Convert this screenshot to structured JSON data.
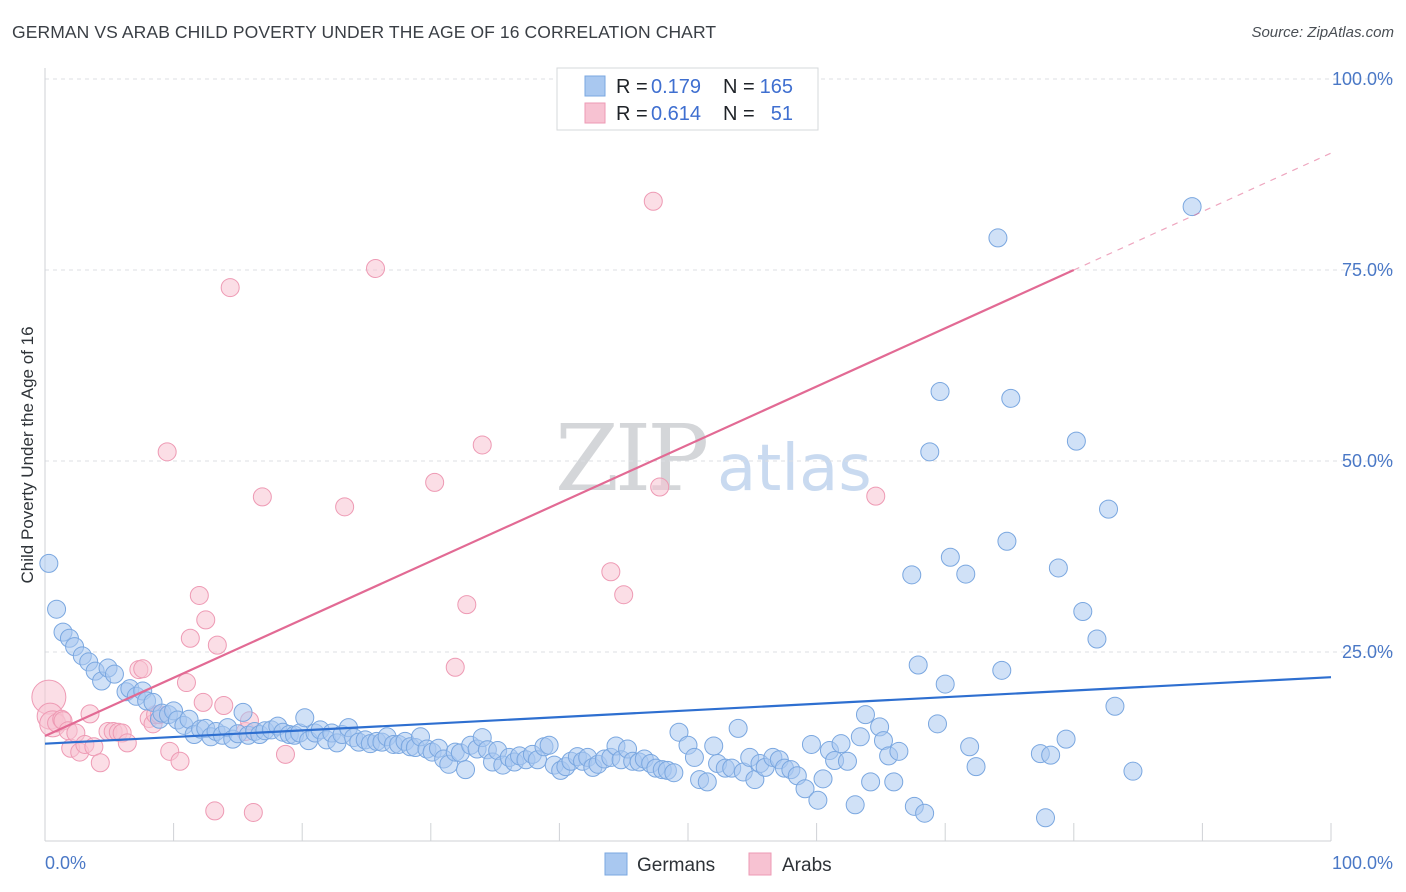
{
  "header": {
    "title": "GERMAN VS ARAB CHILD POVERTY UNDER THE AGE OF 16 CORRELATION CHART",
    "source": "Source: ZipAtlas.com"
  },
  "watermark": {
    "part1": "ZIP",
    "part2": "atlas"
  },
  "legend": {
    "rows": [
      {
        "r_label": "R =",
        "r_value": "0.179",
        "n_label": "N =",
        "n_value": "165"
      },
      {
        "r_label": "R =",
        "r_value": "0.614",
        "n_label": "N =",
        "n_value": "51"
      }
    ]
  },
  "bottom_legend": {
    "germans": "Germans",
    "arabs": "Arabs"
  },
  "colors": {
    "germans_fill": "#a9c8f0",
    "germans_stroke": "#7aa7e0",
    "germans_line": "#2e6fd0",
    "arabs_fill": "#f7c2d2",
    "arabs_stroke": "#ee9ab4",
    "arabs_line": "#e26a94",
    "tick_text": "#4a78c6"
  },
  "chart_data": {
    "type": "scatter",
    "title": "GERMAN VS ARAB CHILD POVERTY UNDER THE AGE OF 16 CORRELATION CHART",
    "xlabel": "",
    "ylabel": "Child Poverty Under the Age of 16",
    "xlim": [
      0,
      100
    ],
    "ylim": [
      0,
      100
    ],
    "x_tick_labels": [
      "0.0%",
      "100.0%"
    ],
    "y_tick_labels": [
      "25.0%",
      "50.0%",
      "75.0%",
      "100.0%"
    ],
    "y_tick_values": [
      25,
      50,
      75,
      100
    ],
    "series": [
      {
        "name": "Germans",
        "R": 0.179,
        "N": 165,
        "trend": {
          "x": [
            0,
            100
          ],
          "y": [
            13.0,
            21.7
          ]
        },
        "points": [
          [
            0.3,
            36.6
          ],
          [
            0.9,
            30.6
          ],
          [
            1.4,
            27.6
          ],
          [
            1.9,
            26.8
          ],
          [
            2.3,
            25.7
          ],
          [
            2.9,
            24.5
          ],
          [
            3.4,
            23.7
          ],
          [
            3.9,
            22.5
          ],
          [
            4.4,
            21.2
          ],
          [
            4.9,
            22.9
          ],
          [
            5.4,
            22.1
          ],
          [
            6.3,
            19.8
          ],
          [
            6.6,
            20.2
          ],
          [
            7.1,
            19.2
          ],
          [
            7.6,
            19.9
          ],
          [
            7.9,
            18.6
          ],
          [
            8.4,
            18.4
          ],
          [
            8.9,
            16.2
          ],
          [
            9.1,
            17.0
          ],
          [
            9.6,
            16.8
          ],
          [
            10.0,
            17.3
          ],
          [
            10.3,
            16.1
          ],
          [
            10.8,
            15.4
          ],
          [
            11.2,
            16.2
          ],
          [
            11.6,
            14.2
          ],
          [
            12.1,
            14.9
          ],
          [
            12.5,
            15.0
          ],
          [
            12.9,
            13.9
          ],
          [
            13.3,
            14.6
          ],
          [
            13.8,
            14.1
          ],
          [
            14.2,
            15.1
          ],
          [
            14.6,
            13.6
          ],
          [
            15.0,
            14.3
          ],
          [
            15.4,
            17.1
          ],
          [
            15.8,
            14.1
          ],
          [
            16.3,
            14.6
          ],
          [
            16.7,
            14.2
          ],
          [
            17.1,
            14.7
          ],
          [
            17.6,
            14.8
          ],
          [
            18.1,
            15.3
          ],
          [
            18.5,
            14.5
          ],
          [
            19.0,
            14.2
          ],
          [
            19.4,
            14.1
          ],
          [
            19.8,
            14.4
          ],
          [
            20.2,
            16.4
          ],
          [
            20.5,
            13.4
          ],
          [
            21.0,
            14.4
          ],
          [
            21.4,
            14.8
          ],
          [
            21.9,
            13.5
          ],
          [
            22.3,
            14.4
          ],
          [
            22.7,
            13.1
          ],
          [
            23.1,
            14.2
          ],
          [
            23.6,
            15.1
          ],
          [
            24.0,
            13.8
          ],
          [
            24.4,
            13.2
          ],
          [
            24.9,
            13.5
          ],
          [
            25.3,
            13.0
          ],
          [
            25.8,
            13.3
          ],
          [
            26.2,
            13.2
          ],
          [
            26.6,
            13.9
          ],
          [
            27.1,
            12.9
          ],
          [
            27.5,
            12.9
          ],
          [
            28.0,
            13.3
          ],
          [
            28.4,
            12.6
          ],
          [
            28.8,
            12.5
          ],
          [
            29.2,
            13.9
          ],
          [
            29.7,
            12.3
          ],
          [
            30.1,
            11.9
          ],
          [
            30.6,
            12.4
          ],
          [
            31.0,
            11.0
          ],
          [
            31.4,
            10.3
          ],
          [
            31.9,
            11.9
          ],
          [
            32.3,
            11.8
          ],
          [
            32.7,
            9.6
          ],
          [
            33.1,
            12.8
          ],
          [
            33.6,
            12.3
          ],
          [
            34.0,
            13.8
          ],
          [
            34.4,
            12.2
          ],
          [
            34.8,
            10.6
          ],
          [
            35.2,
            12.1
          ],
          [
            35.6,
            10.2
          ],
          [
            36.1,
            11.2
          ],
          [
            36.5,
            10.6
          ],
          [
            36.9,
            11.4
          ],
          [
            37.4,
            10.9
          ],
          [
            37.9,
            11.6
          ],
          [
            38.3,
            10.9
          ],
          [
            38.8,
            12.6
          ],
          [
            39.2,
            12.8
          ],
          [
            39.6,
            10.2
          ],
          [
            40.1,
            9.5
          ],
          [
            40.5,
            10.0
          ],
          [
            40.9,
            10.7
          ],
          [
            41.4,
            11.3
          ],
          [
            41.8,
            10.7
          ],
          [
            42.2,
            11.2
          ],
          [
            42.6,
            9.9
          ],
          [
            43.0,
            10.3
          ],
          [
            43.5,
            11.0
          ],
          [
            44.0,
            11.2
          ],
          [
            44.4,
            12.7
          ],
          [
            44.8,
            10.9
          ],
          [
            45.3,
            12.3
          ],
          [
            45.7,
            10.7
          ],
          [
            46.2,
            10.6
          ],
          [
            46.6,
            11.0
          ],
          [
            47.1,
            10.4
          ],
          [
            47.5,
            9.8
          ],
          [
            48.0,
            9.6
          ],
          [
            48.4,
            9.5
          ],
          [
            48.9,
            9.2
          ],
          [
            49.3,
            14.5
          ],
          [
            50.0,
            12.8
          ],
          [
            50.5,
            11.2
          ],
          [
            50.9,
            8.3
          ],
          [
            51.5,
            8.0
          ],
          [
            52.0,
            12.7
          ],
          [
            52.3,
            10.4
          ],
          [
            52.9,
            9.8
          ],
          [
            53.4,
            9.8
          ],
          [
            53.9,
            15.0
          ],
          [
            54.3,
            9.3
          ],
          [
            54.8,
            11.2
          ],
          [
            55.2,
            8.3
          ],
          [
            55.6,
            10.4
          ],
          [
            56.0,
            9.9
          ],
          [
            56.6,
            11.2
          ],
          [
            57.1,
            10.9
          ],
          [
            57.5,
            9.8
          ],
          [
            58.0,
            9.6
          ],
          [
            58.5,
            8.8
          ],
          [
            59.1,
            7.1
          ],
          [
            59.6,
            12.9
          ],
          [
            60.1,
            5.6
          ],
          [
            60.5,
            8.4
          ],
          [
            61.0,
            12.1
          ],
          [
            61.4,
            10.8
          ],
          [
            61.9,
            13.0
          ],
          [
            62.4,
            10.7
          ],
          [
            63.0,
            5.0
          ],
          [
            63.4,
            13.9
          ],
          [
            63.8,
            16.8
          ],
          [
            64.2,
            8.0
          ],
          [
            64.9,
            15.2
          ],
          [
            65.2,
            13.4
          ],
          [
            65.6,
            11.4
          ],
          [
            66.0,
            8.0
          ],
          [
            66.4,
            12.0
          ],
          [
            67.4,
            35.1
          ],
          [
            67.6,
            4.8
          ],
          [
            67.9,
            23.3
          ],
          [
            68.4,
            3.9
          ],
          [
            68.8,
            51.2
          ],
          [
            69.4,
            15.6
          ],
          [
            69.6,
            59.1
          ],
          [
            70.0,
            20.8
          ],
          [
            70.4,
            37.4
          ],
          [
            71.6,
            35.2
          ],
          [
            71.9,
            12.6
          ],
          [
            72.4,
            10.0
          ],
          [
            74.1,
            79.2
          ],
          [
            74.4,
            22.6
          ],
          [
            74.8,
            39.5
          ],
          [
            75.1,
            58.2
          ],
          [
            77.4,
            11.7
          ],
          [
            77.8,
            3.3
          ],
          [
            78.2,
            11.5
          ],
          [
            78.8,
            36.0
          ],
          [
            79.4,
            13.6
          ],
          [
            80.2,
            52.6
          ],
          [
            80.7,
            30.3
          ],
          [
            81.8,
            26.7
          ],
          [
            82.7,
            43.7
          ],
          [
            83.2,
            17.9
          ],
          [
            84.6,
            9.4
          ],
          [
            89.2,
            83.3
          ]
        ]
      },
      {
        "name": "Arabs",
        "R": 0.614,
        "N": 51,
        "trend": {
          "x": [
            0,
            80
          ],
          "y": [
            14.0,
            75.0
          ]
        },
        "trend_extrapolated": {
          "x": [
            80,
            100
          ],
          "y": [
            75.0,
            90.3
          ]
        },
        "points": [
          [
            0.3,
            19.1
          ],
          [
            0.4,
            16.6
          ],
          [
            0.6,
            15.6
          ],
          [
            0.9,
            15.7
          ],
          [
            1.3,
            16.2
          ],
          [
            1.4,
            16.0
          ],
          [
            1.8,
            14.7
          ],
          [
            2.0,
            12.4
          ],
          [
            2.4,
            14.4
          ],
          [
            2.7,
            11.9
          ],
          [
            3.1,
            12.9
          ],
          [
            3.5,
            16.9
          ],
          [
            3.8,
            12.6
          ],
          [
            4.3,
            10.5
          ],
          [
            4.9,
            14.6
          ],
          [
            5.3,
            14.6
          ],
          [
            5.7,
            14.5
          ],
          [
            6.0,
            14.4
          ],
          [
            6.4,
            13.1
          ],
          [
            7.3,
            22.7
          ],
          [
            7.6,
            22.8
          ],
          [
            8.1,
            16.3
          ],
          [
            8.4,
            15.6
          ],
          [
            8.6,
            16.8
          ],
          [
            8.9,
            16.8
          ],
          [
            9.5,
            51.2
          ],
          [
            9.7,
            12.0
          ],
          [
            10.5,
            10.7
          ],
          [
            11.0,
            21.0
          ],
          [
            11.3,
            26.8
          ],
          [
            12.0,
            32.4
          ],
          [
            12.3,
            18.4
          ],
          [
            12.5,
            29.2
          ],
          [
            13.2,
            4.2
          ],
          [
            13.4,
            25.9
          ],
          [
            13.9,
            18.0
          ],
          [
            14.4,
            72.7
          ],
          [
            15.6,
            14.6
          ],
          [
            15.9,
            16.0
          ],
          [
            16.2,
            4.0
          ],
          [
            16.9,
            45.3
          ],
          [
            18.7,
            11.6
          ],
          [
            23.3,
            44.0
          ],
          [
            25.7,
            75.2
          ],
          [
            30.3,
            47.2
          ],
          [
            31.9,
            23.0
          ],
          [
            32.8,
            31.2
          ],
          [
            34.0,
            52.1
          ],
          [
            44.0,
            35.5
          ],
          [
            45.0,
            32.5
          ],
          [
            47.3,
            84.0
          ],
          [
            47.8,
            46.6
          ],
          [
            64.6,
            45.4
          ]
        ]
      }
    ]
  }
}
